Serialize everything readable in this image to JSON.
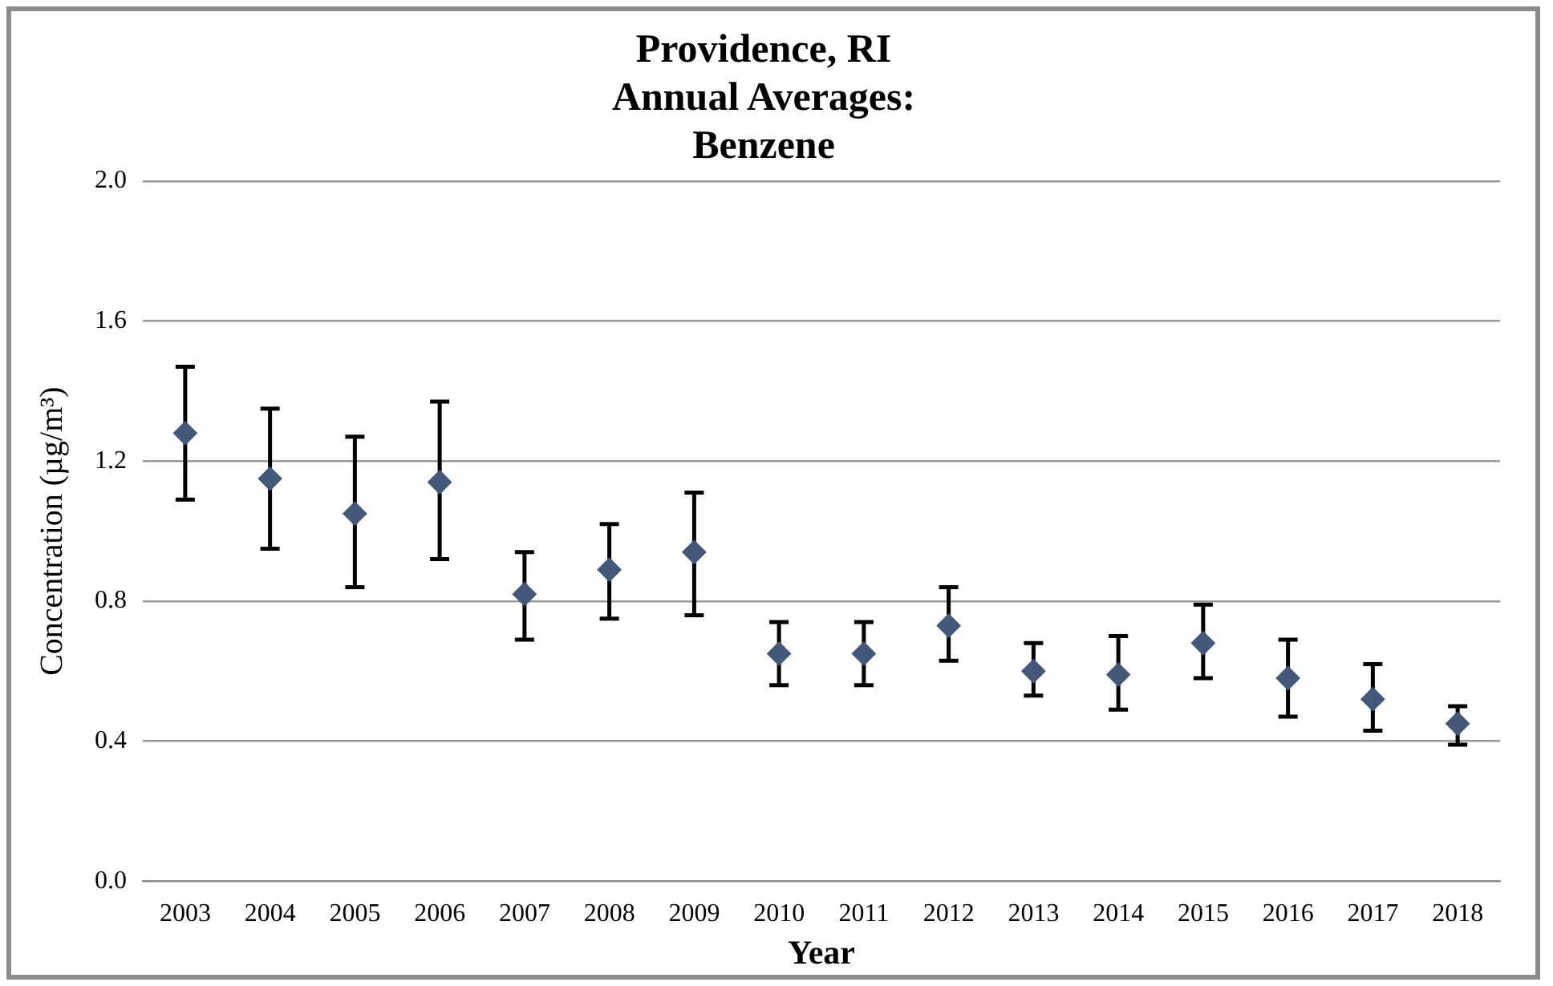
{
  "chart_data": {
    "type": "scatter",
    "title": "Providence, RI\nAnnual Averages:\nBenzene",
    "xlabel": "Year",
    "ylabel": "Concentration (µg/m³)",
    "categories": [
      "2003",
      "2004",
      "2005",
      "2006",
      "2007",
      "2008",
      "2009",
      "2010",
      "2011",
      "2012",
      "2013",
      "2014",
      "2015",
      "2016",
      "2017",
      "2018"
    ],
    "series": [
      {
        "color": "#44587a",
        "values": [
          1.28,
          1.15,
          1.05,
          1.14,
          0.82,
          0.89,
          0.94,
          0.65,
          0.65,
          0.73,
          0.6,
          0.59,
          0.68,
          0.58,
          0.52,
          0.45
        ],
        "errors": [
          [
            1.09,
            1.47
          ],
          [
            0.95,
            1.35
          ],
          [
            0.84,
            1.27
          ],
          [
            0.92,
            1.37
          ],
          [
            0.69,
            0.94
          ],
          [
            0.75,
            1.02
          ],
          [
            0.76,
            1.11
          ],
          [
            0.56,
            0.74
          ],
          [
            0.56,
            0.74
          ],
          [
            0.63,
            0.84
          ],
          [
            0.53,
            0.68
          ],
          [
            0.49,
            0.7
          ],
          [
            0.58,
            0.79
          ],
          [
            0.47,
            0.69
          ],
          [
            0.43,
            0.62
          ],
          [
            0.39,
            0.5
          ]
        ]
      }
    ],
    "ylim": [
      0,
      2
    ],
    "yticks": [
      {
        "value": 0,
        "label": "0.0"
      },
      {
        "value": 0.4,
        "label": "0.4"
      },
      {
        "value": 0.8,
        "label": "0.8"
      },
      {
        "value": 1.2,
        "label": "1.2"
      },
      {
        "value": 1.6,
        "label": "1.6"
      },
      {
        "value": 2,
        "label": "2.0"
      }
    ],
    "grid": "y",
    "legend": false,
    "marker": "diamond"
  }
}
